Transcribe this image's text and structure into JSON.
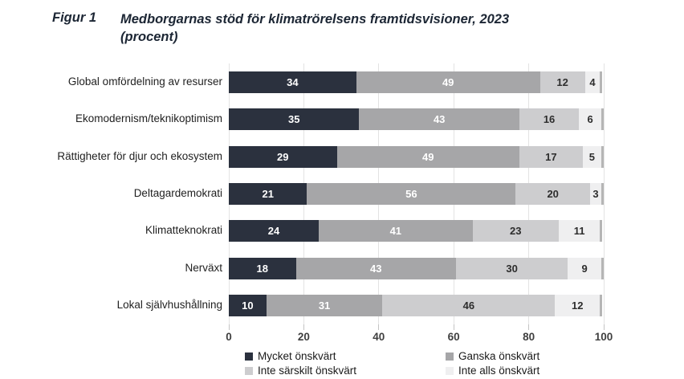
{
  "header": {
    "figure_label": "Figur 1",
    "title_line1": "Medborgarnas stöd för klimatrörelsens framtidsvisioner, 2023",
    "title_line2": "(procent)"
  },
  "chart_data": {
    "type": "bar",
    "subtype": "horizontal-stacked",
    "categories": [
      "Global omfördelning av resurser",
      "Ekomodernism/teknikoptimism",
      "Rättigheter för djur och ekosystem",
      "Deltagardemokrati",
      "Klimatteknokrati",
      "Nerväxt",
      "Lokal självhushållning"
    ],
    "series": [
      {
        "name": "Mycket önskvärt",
        "color": "#2b313e",
        "text_color": "#ffffff",
        "values": [
          34,
          35,
          29,
          21,
          24,
          18,
          10
        ]
      },
      {
        "name": "Ganska önskvärt",
        "color": "#a6a6a8",
        "text_color": "#ffffff",
        "values": [
          49,
          43,
          49,
          56,
          41,
          43,
          31
        ]
      },
      {
        "name": "Inte särskilt önskvärt",
        "color": "#cdcdcf",
        "text_color": "#2d2d2d",
        "values": [
          12,
          16,
          17,
          20,
          23,
          30,
          46
        ]
      },
      {
        "name": "Inte alls önskvärt",
        "color": "#efeff0",
        "text_color": "#2d2d2d",
        "values": [
          4,
          6,
          5,
          3,
          11,
          9,
          12
        ]
      }
    ],
    "x_ticks": [
      0,
      20,
      40,
      60,
      80,
      100
    ],
    "xlim": [
      0,
      100
    ],
    "xlabel": "",
    "ylabel": "",
    "grid": true,
    "legend_position": "bottom",
    "end_cap_color": "#b5b5b5",
    "gridline_color": "#e3e3e3"
  }
}
